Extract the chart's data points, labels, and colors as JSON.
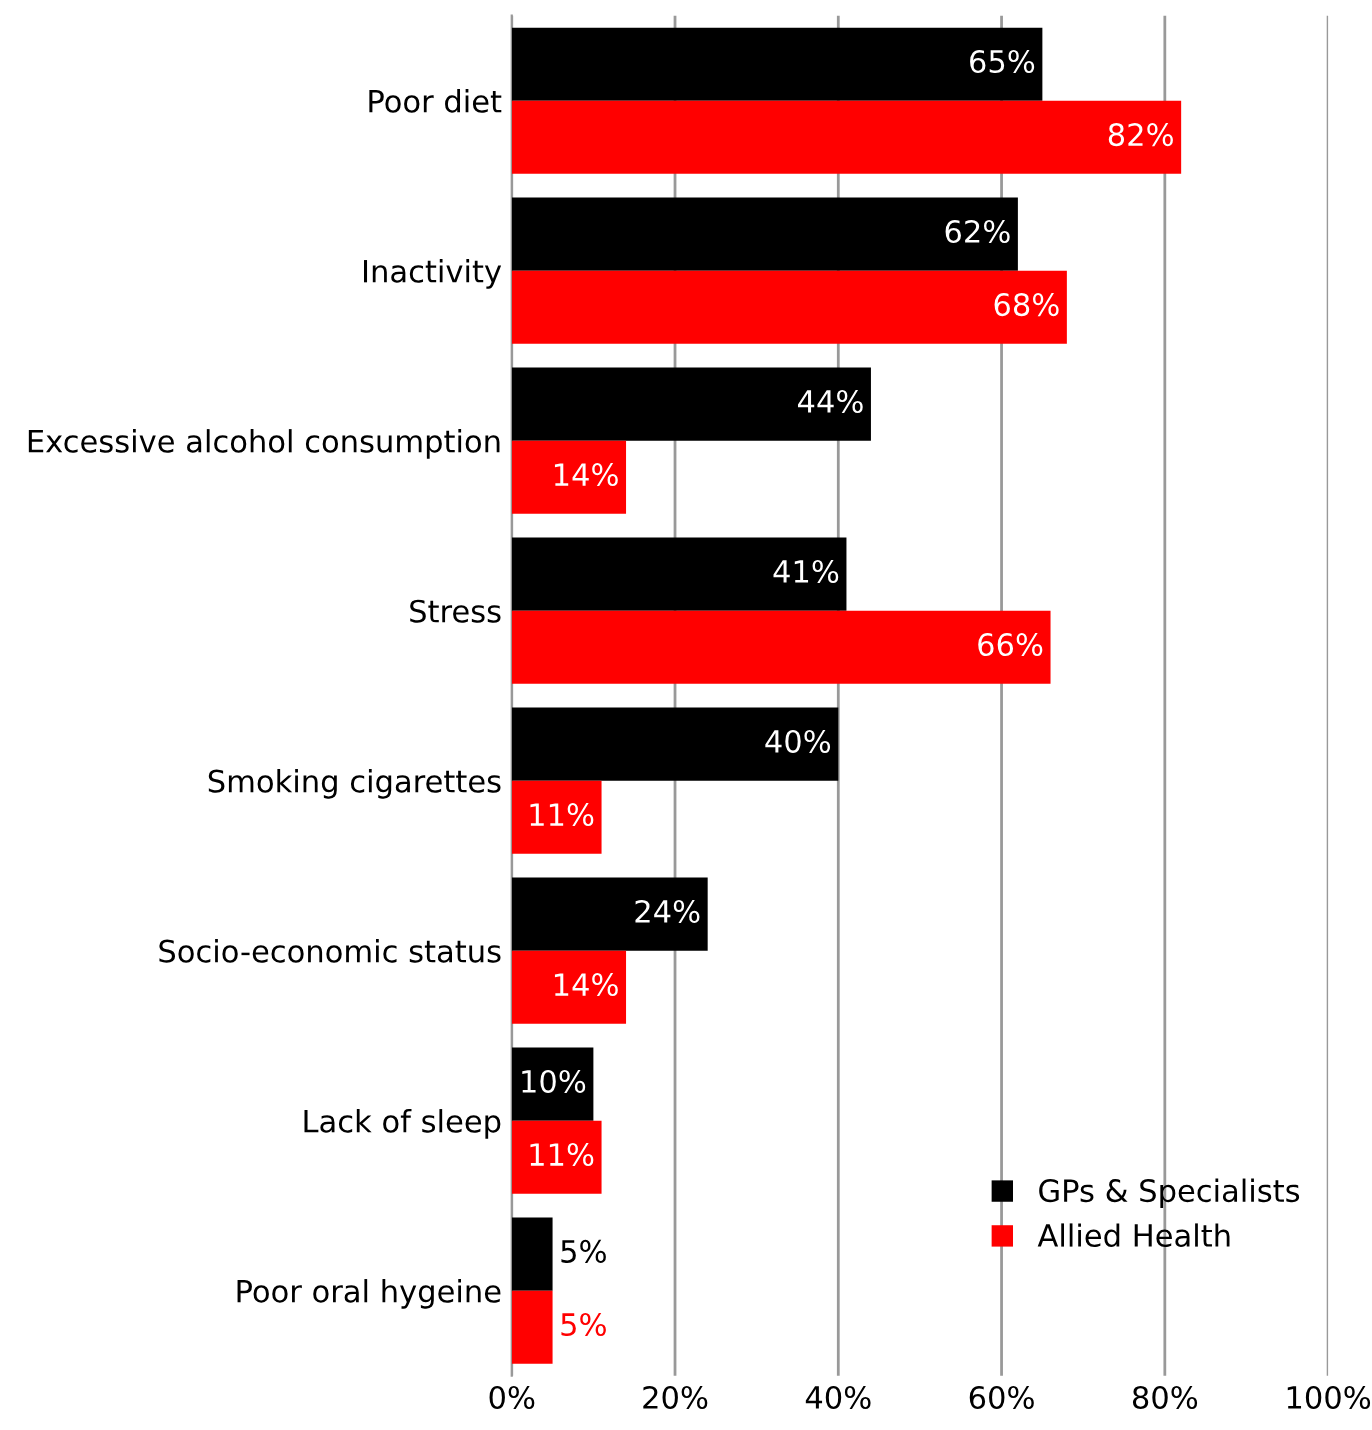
{
  "chart_data": {
    "type": "bar",
    "orientation": "horizontal",
    "categories": [
      "Poor diet",
      "Inactivity",
      "Excessive alcohol consumption",
      "Stress",
      "Smoking cigarettes",
      "Socio-economic status",
      "Lack of sleep",
      "Poor oral hygeine"
    ],
    "series": [
      {
        "name": "GPs & Specialists",
        "color": "#000000",
        "values": [
          65,
          62,
          44,
          41,
          40,
          24,
          10,
          5
        ],
        "value_labels": [
          "65%",
          "62%",
          "44%",
          "41%",
          "40%",
          "24%",
          "10%",
          "5%"
        ]
      },
      {
        "name": "Allied Health",
        "color": "#ff0000",
        "values": [
          82,
          68,
          14,
          66,
          11,
          14,
          11,
          5
        ],
        "value_labels": [
          "82%",
          "68%",
          "14%",
          "66%",
          "11%",
          "14%",
          "11%",
          "5%"
        ]
      }
    ],
    "xlim": [
      0,
      100
    ],
    "xticks": [
      {
        "value": 0,
        "label": "0%"
      },
      {
        "value": 20,
        "label": "20%"
      },
      {
        "value": 40,
        "label": "40%"
      },
      {
        "value": 60,
        "label": "60%"
      },
      {
        "value": 80,
        "label": "80%"
      },
      {
        "value": 100,
        "label": "100%"
      }
    ],
    "grid": "x",
    "legend": "bottom right"
  }
}
